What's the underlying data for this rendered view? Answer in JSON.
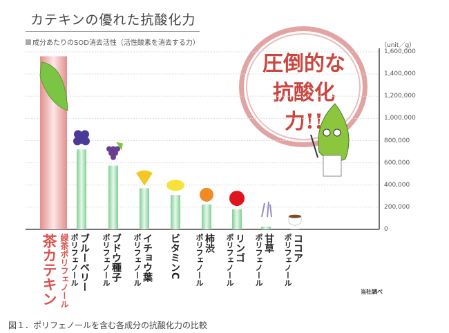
{
  "title": "カテキンの優れた抗酸化力",
  "subtitle": "成分あたりのSOD消去活性（活性酸素を消去する力）",
  "stamp": {
    "line1": "圧倒的な",
    "line2": "抗酸化力!!"
  },
  "source": "当社調べ",
  "caption": "図１．ポリフェノールを含む各成分の抗酸化力の比較",
  "colors": {
    "highlight_bar": "#e8a0a0",
    "bar": "#9fdcae",
    "stamp": "#c9473f"
  },
  "chart_data": {
    "type": "bar",
    "unit": "（unit／g）",
    "ylim": [
      0,
      1600000
    ],
    "yticks": [
      "1,600,000",
      "1,400,000",
      "1,200,000",
      "1,000,000",
      "800,000",
      "600,000",
      "400,000",
      "200,000",
      "0"
    ],
    "ytick_values": [
      1600000,
      1400000,
      1200000,
      1000000,
      800000,
      600000,
      400000,
      200000,
      0
    ],
    "grid": true,
    "categories": [
      {
        "name": "茶カテキン",
        "sub": "緑茶ポリフェノール",
        "icon": "tea-leaf-icon",
        "highlight": true
      },
      {
        "name": "ブルーベリー",
        "sub": "ポリフェノール",
        "icon": "blueberry-icon"
      },
      {
        "name": "ブドウ種子",
        "sub": "ポリフェノール",
        "icon": "grape-icon"
      },
      {
        "name": "イチョウ葉",
        "sub": "ポリフェノール",
        "icon": "ginkgo-leaf-icon"
      },
      {
        "name": "ビタミンC",
        "sub": "",
        "icon": "lemon-icon"
      },
      {
        "name": "柿渋",
        "sub": "ポリフェノール",
        "icon": "persimmon-icon"
      },
      {
        "name": "リンゴ",
        "sub": "ポリフェノール",
        "icon": "apple-icon"
      },
      {
        "name": "甘草",
        "sub": "ポリフェノール",
        "icon": "licorice-icon"
      },
      {
        "name": "ココア",
        "sub": "ポリフェノール",
        "icon": "cocoa-cup-icon"
      }
    ],
    "values": [
      1560000,
      720000,
      575000,
      370000,
      310000,
      225000,
      180000,
      25000,
      5000
    ]
  }
}
